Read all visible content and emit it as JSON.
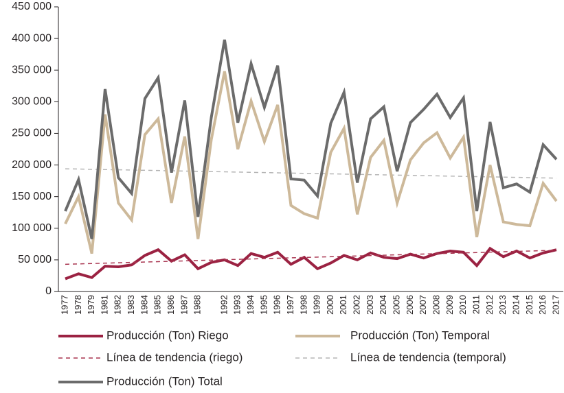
{
  "chart_data": {
    "type": "line",
    "categories": [
      "1977",
      "1978",
      "1979",
      "1981",
      "1982",
      "1983",
      "1984",
      "1985",
      "1986",
      "1987",
      "1988",
      null,
      "1992",
      "1993",
      "1994",
      "1995",
      "1996",
      "1997",
      "1998",
      "1999",
      "2000",
      "2001",
      "2002",
      "2003",
      "2004",
      "2005",
      "2006",
      "2007",
      "2008",
      "2009",
      "2010",
      "2011",
      "2012",
      "2013",
      "2014",
      "2015",
      "2016",
      "2017"
    ],
    "ylim": [
      0,
      450000
    ],
    "yticks": [
      0,
      {
        "value": 50000,
        "label": "50 000"
      },
      {
        "value": 100000,
        "label": "100 000"
      },
      {
        "value": 150000,
        "label": "150 000"
      },
      {
        "value": 200000,
        "label": "200 000"
      },
      {
        "value": 250000,
        "label": "250 000"
      },
      {
        "value": 300000,
        "label": "300 000"
      },
      {
        "value": 350000,
        "label": "350 000"
      },
      {
        "value": 400000,
        "label": "400 000"
      },
      {
        "value": 450000,
        "label": "450 000"
      }
    ],
    "grid": false,
    "series": [
      {
        "name": "Producción (Ton) Riego",
        "color": "#9b2242",
        "style": "solid",
        "values": [
          20000,
          28000,
          22000,
          40000,
          39000,
          42000,
          57000,
          66000,
          48000,
          58000,
          36000,
          46000,
          50000,
          41000,
          60000,
          54000,
          62000,
          43000,
          54000,
          36000,
          45000,
          57000,
          50000,
          61000,
          54000,
          52000,
          59000,
          53000,
          60000,
          64000,
          62000,
          41000,
          68000,
          55000,
          64000,
          53000,
          61000,
          66000
        ]
      },
      {
        "name": "Producción (Ton) Temporal",
        "color": "#cdb99a",
        "style": "solid",
        "values": [
          107000,
          150000,
          60000,
          280000,
          140000,
          113000,
          248000,
          273000,
          140000,
          245000,
          83000,
          240000,
          348000,
          225000,
          301000,
          237000,
          295000,
          136000,
          123000,
          116000,
          220000,
          258000,
          122000,
          212000,
          239000,
          140000,
          208000,
          235000,
          251000,
          211000,
          244000,
          86000,
          200000,
          110000,
          106000,
          104000,
          171000,
          143000
        ]
      },
      {
        "name": "Línea de tendencia (riego)",
        "color": "#a8344f",
        "style": "dashed",
        "values": [
          43000,
          43600,
          44200,
          44800,
          45400,
          46000,
          46600,
          47200,
          47800,
          48400,
          49000,
          49600,
          50200,
          50800,
          51400,
          52000,
          52600,
          53200,
          53800,
          54400,
          55000,
          55600,
          56200,
          56800,
          57400,
          58000,
          58600,
          59200,
          59800,
          60400,
          61000,
          61600,
          62200,
          62800,
          63400,
          64000,
          64600,
          65200
        ]
      },
      {
        "name": "Línea de tendencia (temporal)",
        "color": "#b5b5b5",
        "style": "dashed",
        "values": [
          194000,
          193600,
          193200,
          192800,
          192400,
          192000,
          191600,
          191200,
          190800,
          190400,
          190000,
          189600,
          189200,
          188800,
          188400,
          188000,
          187600,
          187200,
          186800,
          186400,
          186000,
          185600,
          185200,
          184800,
          184400,
          184000,
          183600,
          183200,
          182800,
          182400,
          182000,
          181600,
          181200,
          180800,
          180400,
          180000,
          179600,
          179200
        ]
      },
      {
        "name": "Producción (Ton) Total",
        "color": "#6b6b6b",
        "style": "solid",
        "values": [
          127000,
          177000,
          83000,
          320000,
          180000,
          155000,
          305000,
          338000,
          188000,
          302000,
          118000,
          275000,
          398000,
          267000,
          360000,
          291000,
          357000,
          178000,
          176000,
          151000,
          266000,
          315000,
          172000,
          273000,
          292000,
          190000,
          267000,
          288000,
          312000,
          275000,
          306000,
          127000,
          268000,
          164000,
          170000,
          157000,
          232000,
          209000
        ]
      }
    ]
  }
}
